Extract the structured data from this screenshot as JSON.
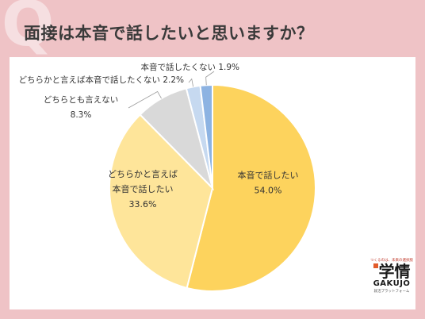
{
  "header": {
    "q_mark": "Q",
    "title": "面接は本音で話したいと思いますか？"
  },
  "chart_data": {
    "type": "pie",
    "start": "12 o'clock",
    "direction": "clockwise",
    "slices": [
      {
        "label_lines": [
          "本音で話したい"
        ],
        "value": 54.0,
        "value_text": "54.0%",
        "color": "#fdd35d",
        "label_position": "inside"
      },
      {
        "label_lines": [
          "どちらかと言えば",
          "本音で話したい"
        ],
        "value": 33.6,
        "value_text": "33.6%",
        "color": "#fee59a",
        "label_position": "inside"
      },
      {
        "label_lines": [
          "どちらとも言えない"
        ],
        "value": 8.3,
        "value_text": "8.3%",
        "color": "#d9d9d9",
        "label_position": "outside"
      },
      {
        "label_lines": [
          "どちらかと言えば本音で話したくない"
        ],
        "value": 2.2,
        "value_text": "2.2%",
        "color": "#c6d9f0",
        "label_position": "outside"
      },
      {
        "label_lines": [
          "本音で話したくない"
        ],
        "value": 1.9,
        "value_text": "1.9%",
        "color": "#8db3e2",
        "label_position": "outside"
      }
    ]
  },
  "logo": {
    "tagline": "つくるのは、未来の選択肢",
    "kanji": "学情",
    "roman": "GAKUJO",
    "sub": "就活プラットフォーム"
  }
}
